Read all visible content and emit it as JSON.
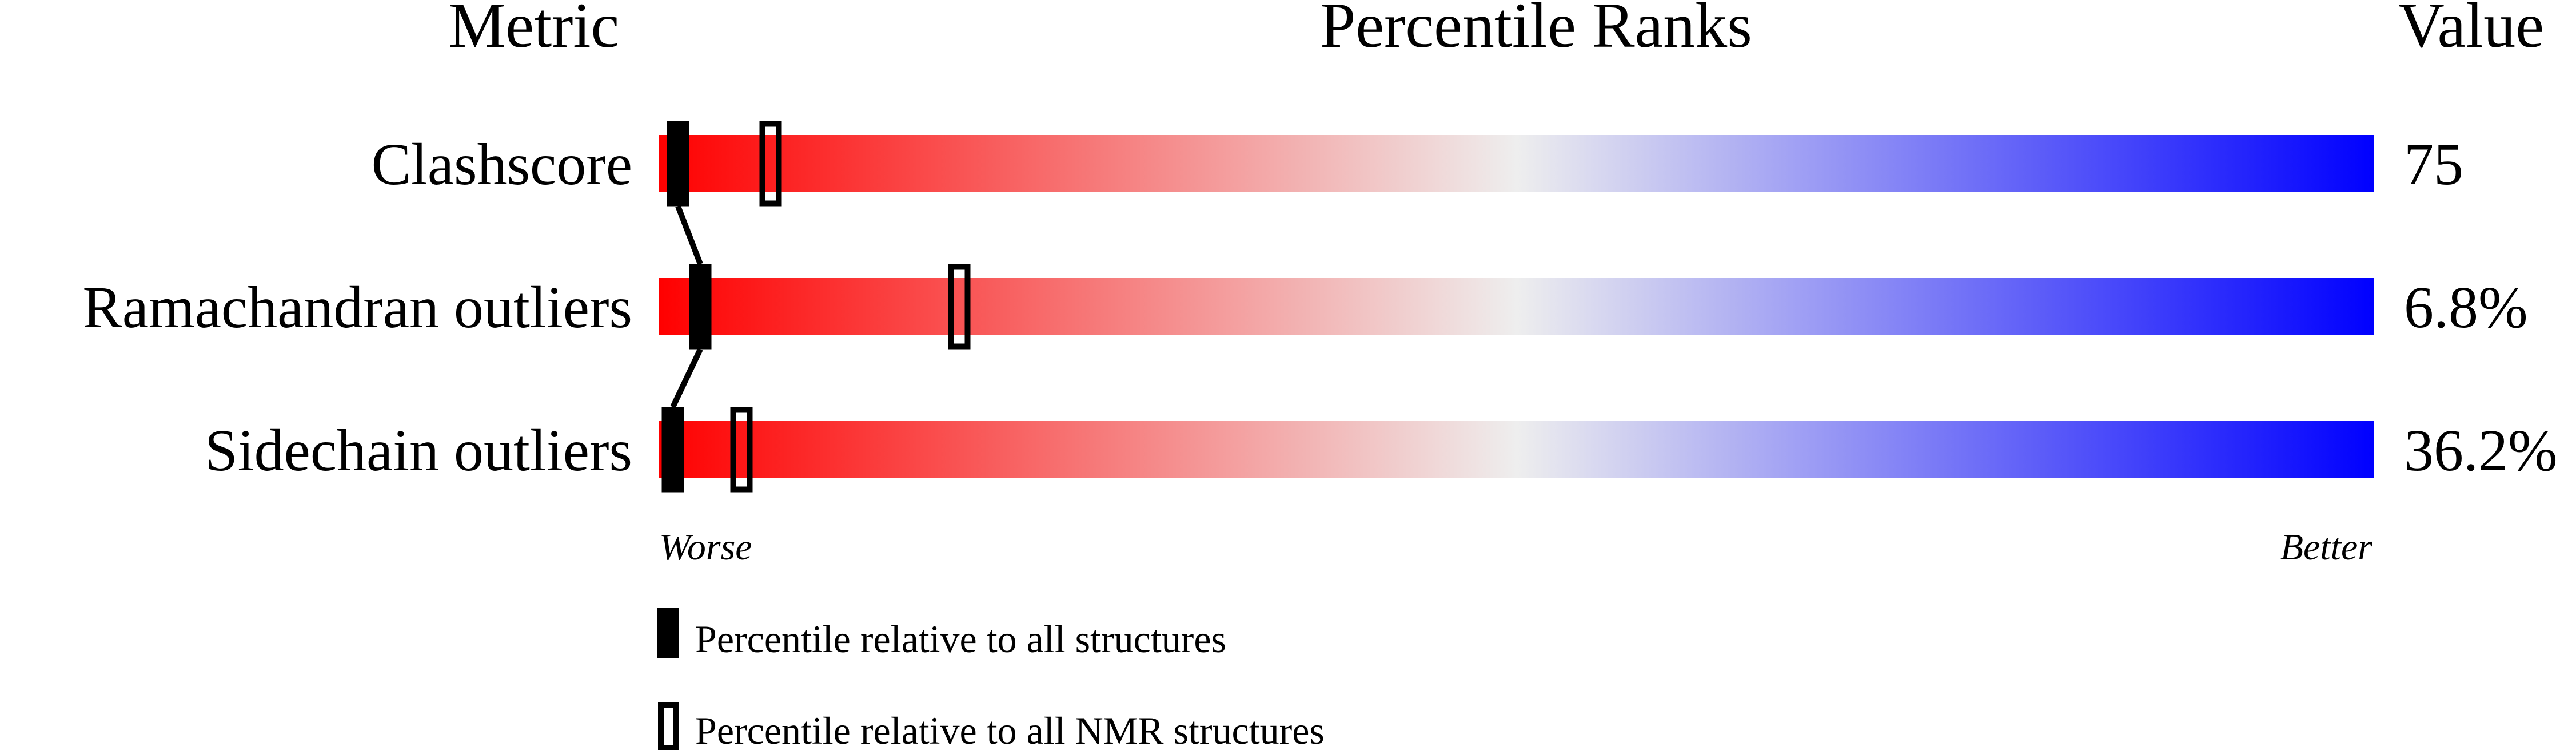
{
  "chart_data": {
    "type": "bar",
    "headers": {
      "metric": "Metric",
      "ranks": "Percentile Ranks",
      "value": "Value"
    },
    "metrics": [
      {
        "label": "Clashscore",
        "value": "75",
        "percentile_all": 1.1,
        "percentile_nmr": 6.5
      },
      {
        "label": "Ramachandran outliers",
        "value": "6.8%",
        "percentile_all": 2.4,
        "percentile_nmr": 17.5
      },
      {
        "label": "Sidechain outliers",
        "value": "36.2%",
        "percentile_all": 0.8,
        "percentile_nmr": 4.8
      }
    ],
    "axis": {
      "min_label": "Worse",
      "max_label": "Better",
      "range": [
        0,
        100
      ]
    },
    "legend": {
      "all": "Percentile relative to all structures",
      "nmr": "Percentile relative to all NMR structures"
    },
    "colors": {
      "worse": "#ff0000",
      "middle": "#eeeeee",
      "better": "#0000ff",
      "marker": "#000000"
    }
  }
}
